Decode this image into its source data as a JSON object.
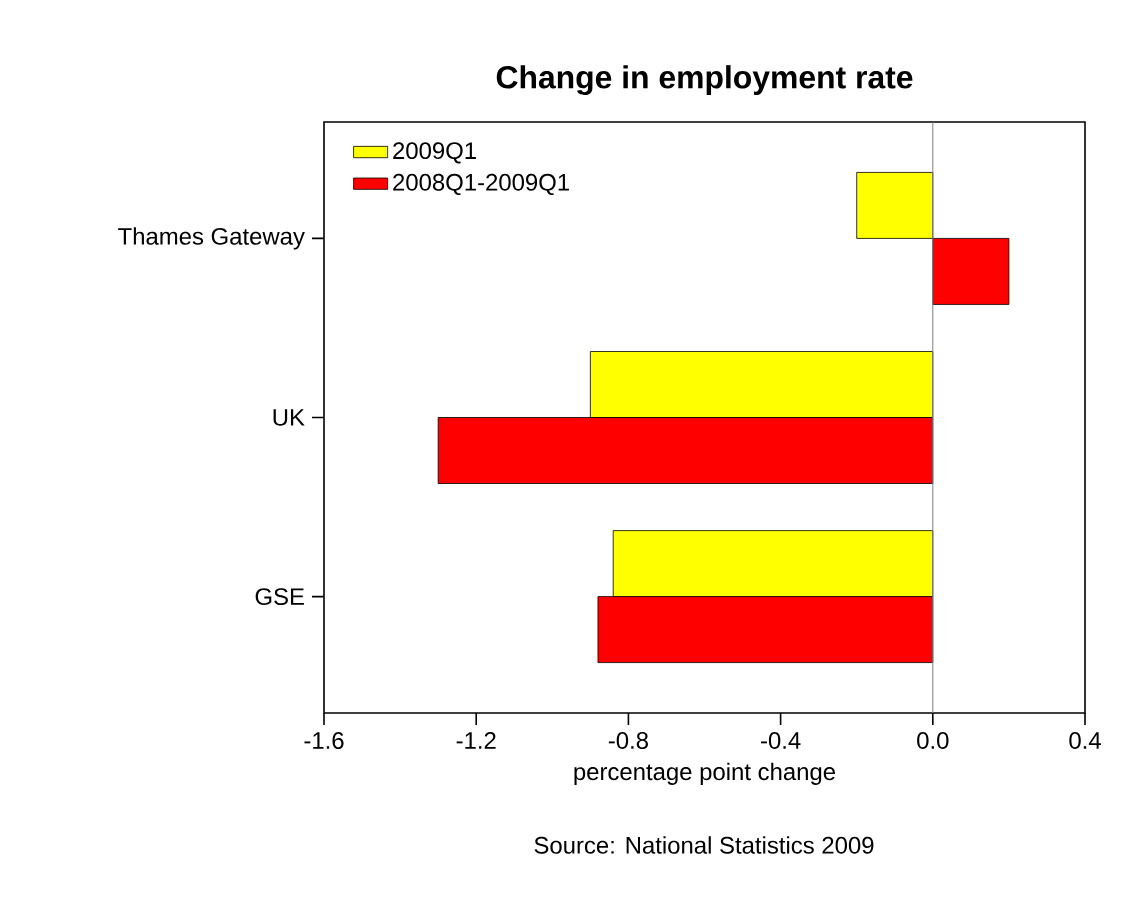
{
  "chart_data": {
    "type": "bar",
    "orientation": "horizontal",
    "title": "Change in employment rate",
    "xlabel": "percentage point change",
    "categories": [
      "Thames Gateway",
      "UK",
      "GSE"
    ],
    "series": [
      {
        "name": "2009Q1",
        "color": "#ffff00",
        "values": [
          -0.2,
          -0.9,
          -0.84
        ]
      },
      {
        "name": "2008Q1-2009Q1",
        "color": "#ff0000",
        "values": [
          0.2,
          -1.3,
          -0.88
        ]
      }
    ],
    "xlim": [
      -1.6,
      0.4
    ],
    "xticks": [
      {
        "value": -1.6,
        "label": "-1.6"
      },
      {
        "value": -1.2,
        "label": "-1.2"
      },
      {
        "value": -0.8,
        "label": "-0.8"
      },
      {
        "value": -0.4,
        "label": "-0.4"
      },
      {
        "value": 0,
        "label": "0.0"
      },
      {
        "value": 0.4,
        "label": "0.4"
      }
    ],
    "ref_lines": [
      {
        "axis": "x",
        "value": 0,
        "color": "#808080"
      }
    ],
    "legend": "top left",
    "grid": false,
    "annotations": [
      "Source: National Statistics 2009"
    ]
  }
}
